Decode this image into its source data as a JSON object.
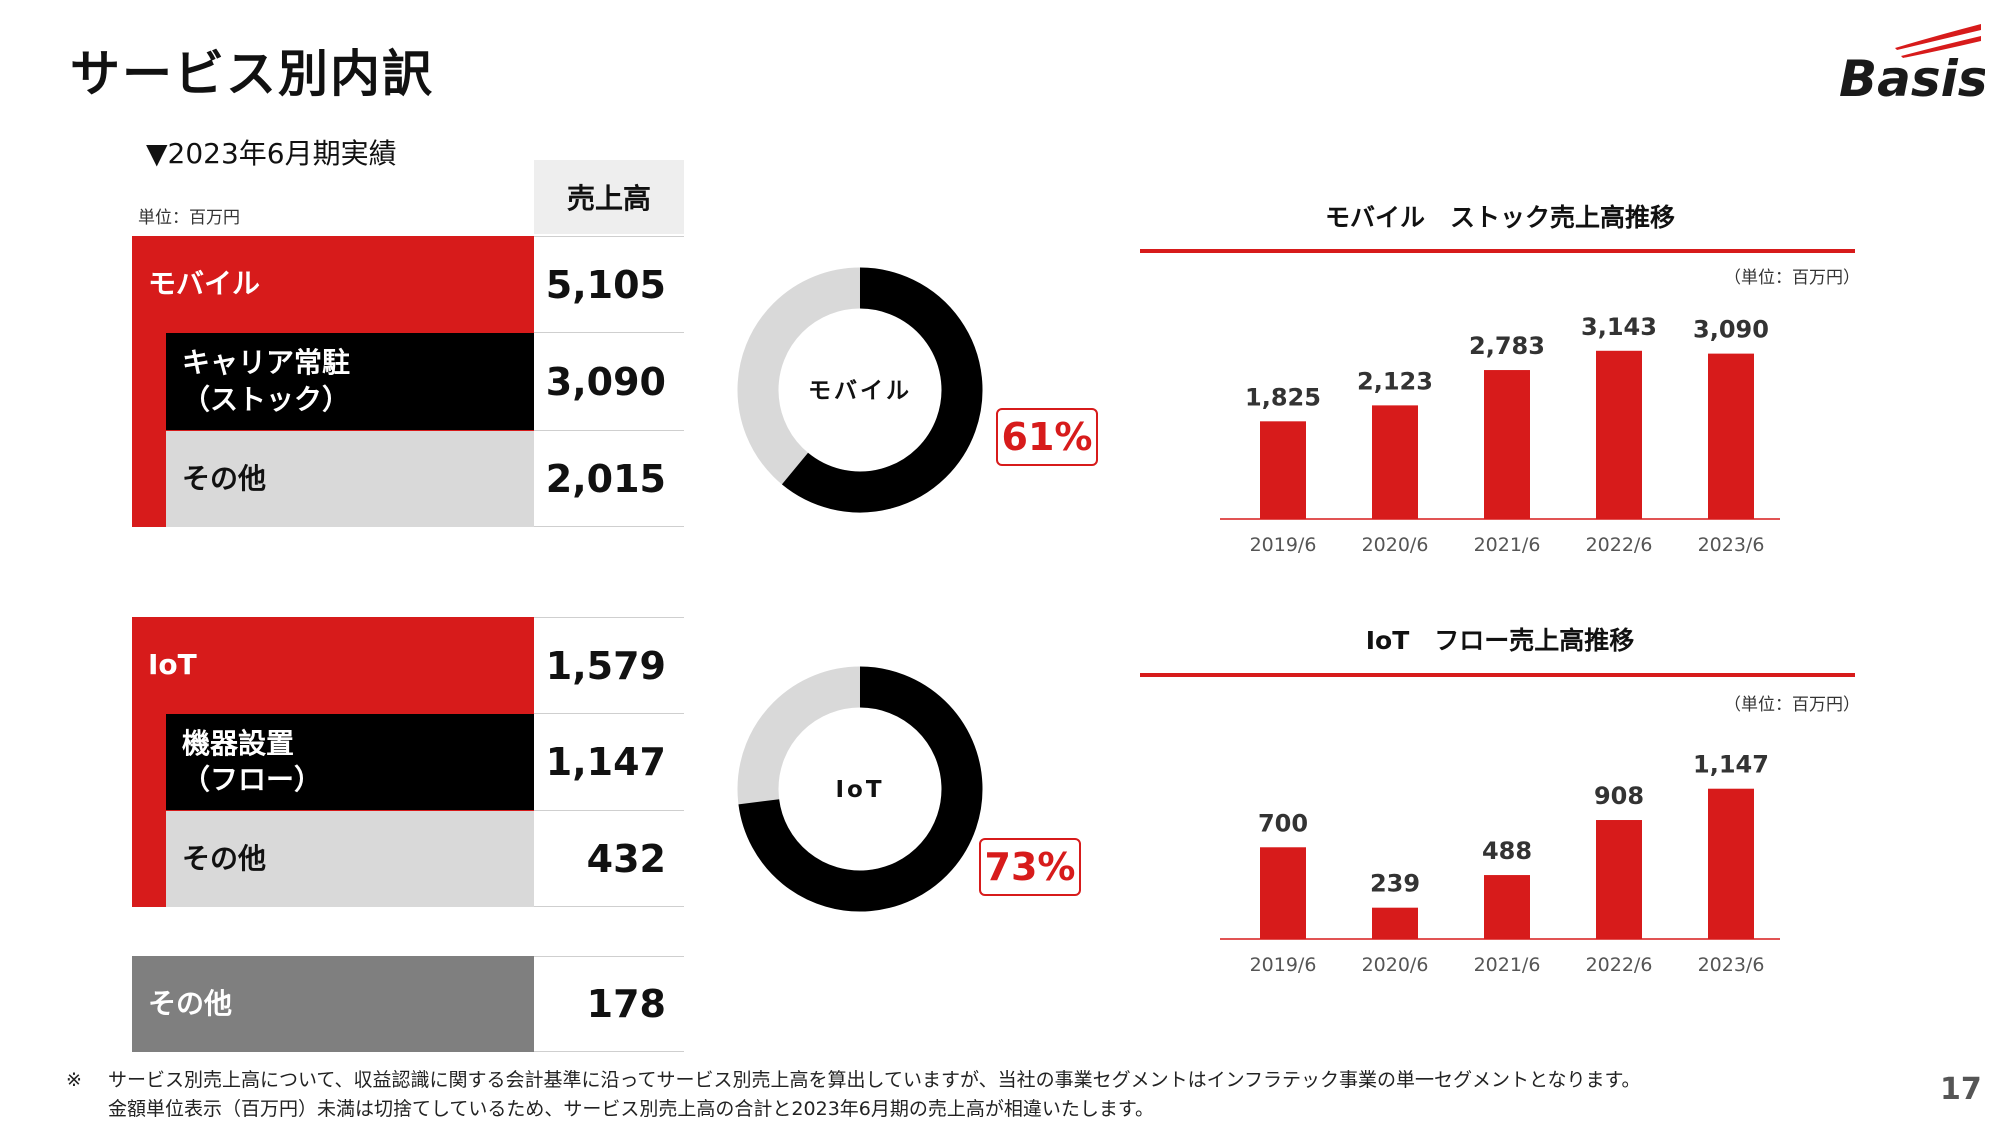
{
  "page": {
    "title": "サービス別内訳",
    "logo_text": "Basis",
    "period_label": "▼2023年6月期実績",
    "unit_label": "単位：百万円",
    "column_header": "売上高",
    "page_number": "17"
  },
  "colors": {
    "accent": "#d71b1b",
    "black": "#000000",
    "light_gray": "#d9d9d9",
    "dark_gray": "#7f7f7f"
  },
  "table": {
    "mobile": {
      "label": "モバイル",
      "value": "5,105"
    },
    "carrier": {
      "label_line1": "キャリア常駐",
      "label_line2": "（ストック）",
      "value": "3,090"
    },
    "mobile_other": {
      "label": "その他",
      "value": "2,015"
    },
    "iot": {
      "label": "IoT",
      "value": "1,579"
    },
    "device": {
      "label_line1": "機器設置",
      "label_line2": "（フロー）",
      "value": "1,147"
    },
    "iot_other": {
      "label": "その他",
      "value": "432"
    },
    "other": {
      "label": "その他",
      "value": "178"
    }
  },
  "donuts": {
    "mobile": {
      "center_label": "モバイル",
      "percent_label": "61%",
      "share": 0.61
    },
    "iot": {
      "center_label": "IoT",
      "percent_label": "73%",
      "share": 0.73
    }
  },
  "chart_data": [
    {
      "type": "bar",
      "title": "モバイル　ストック売上高推移",
      "unit": "（単位：百万円）",
      "categories": [
        "2019/6",
        "2020/6",
        "2021/6",
        "2022/6",
        "2023/6"
      ],
      "values": [
        1825,
        2123,
        2783,
        3143,
        3090
      ],
      "value_labels": [
        "1,825",
        "2,123",
        "2,783",
        "3,143",
        "3,090"
      ],
      "ylim": [
        0,
        3550
      ],
      "grid": false,
      "color": "#d71b1b"
    },
    {
      "type": "bar",
      "title": "IoT　フロー売上高推移",
      "unit": "（単位：百万円）",
      "categories": [
        "2019/6",
        "2020/6",
        "2021/6",
        "2022/6",
        "2023/6"
      ],
      "values": [
        700,
        239,
        488,
        908,
        1147
      ],
      "value_labels": [
        "700",
        "239",
        "488",
        "908",
        "1,147"
      ],
      "ylim": [
        0,
        1450
      ],
      "grid": false,
      "color": "#d71b1b"
    }
  ],
  "footnote": {
    "mark": "※",
    "line1": "サービス別売上高について、収益認識に関する会計基準に沿ってサービス別売上高を算出していますが、当社の事業セグメントはインフラテック事業の単一セグメントとなります。",
    "line2": "金額単位表示（百万円）未満は切捨てしているため、サービス別売上高の合計と2023年6月期の売上高が相違いたします。"
  }
}
